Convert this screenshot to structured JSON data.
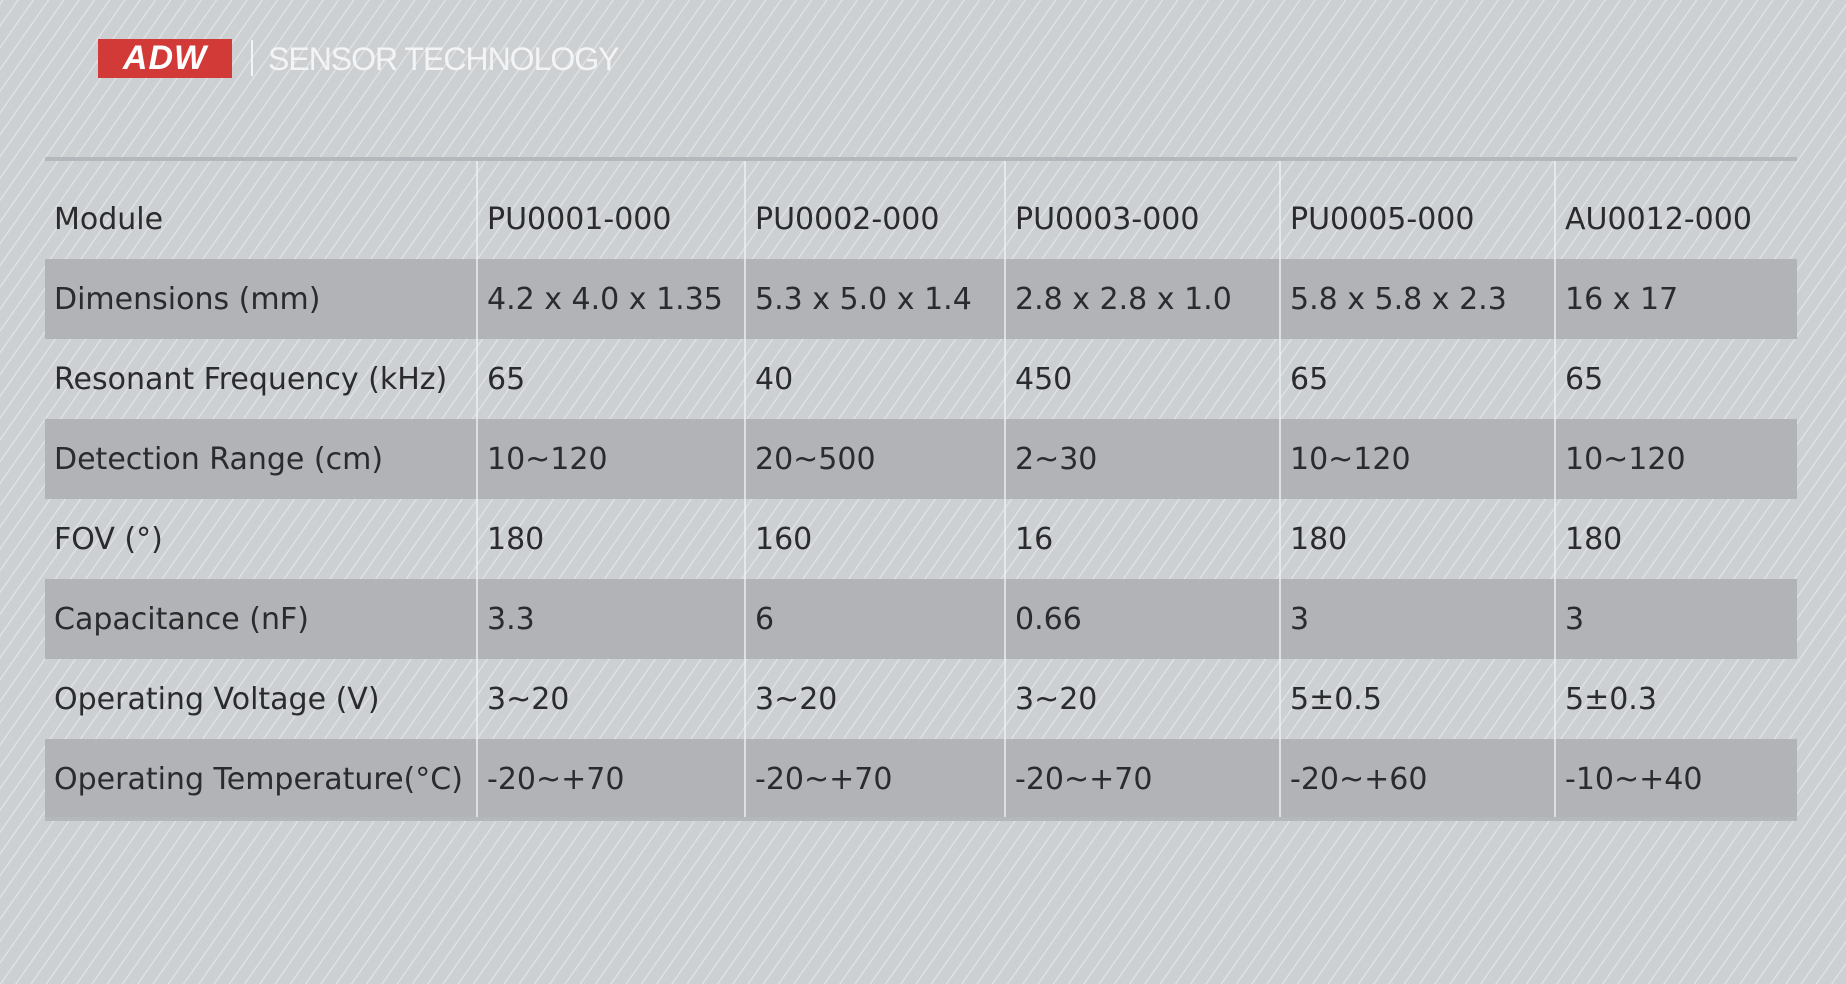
{
  "header": {
    "logo_text": "ADW",
    "tagline": "SENSOR TECHNOLOGY",
    "brand_color": "#d13a36"
  },
  "table": {
    "header": [
      "Module",
      "PU0001-000",
      "PU0002-000",
      "PU0003-000",
      "PU0005-000",
      "AU0012-000"
    ],
    "rows": [
      [
        "Dimensions (mm)",
        "4.2 x 4.0 x 1.35",
        "5.3 x 5.0 x 1.4",
        "2.8 x 2.8 x 1.0",
        "5.8 x 5.8 x 2.3",
        "16 x 17"
      ],
      [
        "Resonant Frequency (kHz)",
        "65",
        "40",
        "450",
        "65",
        "65"
      ],
      [
        "Detection Range (cm)",
        "10~120",
        "20~500",
        "2~30",
        "10~120",
        "10~120"
      ],
      [
        "FOV (°)",
        "180",
        "160",
        "16",
        "180",
        "180"
      ],
      [
        "Capacitance (nF)",
        "3.3",
        "6",
        "0.66",
        "3",
        "3"
      ],
      [
        "Operating Voltage (V)",
        "3~20",
        "3~20",
        "3~20",
        "5±0.5",
        "5±0.3"
      ],
      [
        "Operating Temperature(°C)",
        "-20~+70",
        "-20~+70",
        "-20~+70",
        "-20~+60",
        "-10~+40"
      ]
    ]
  }
}
